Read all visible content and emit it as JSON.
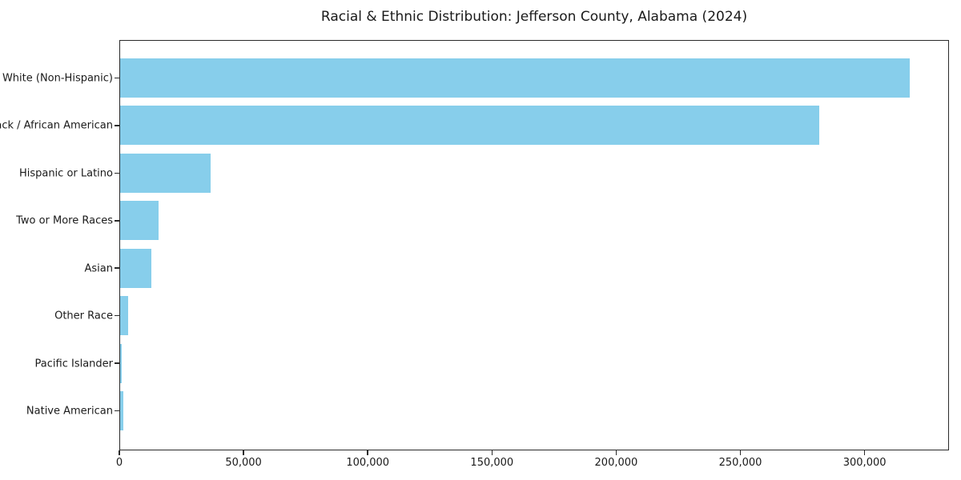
{
  "page": {
    "background_color": "#ffffff",
    "text_color": "#1a1a1a",
    "axis_color": "#2a2a2a"
  },
  "chart_data": {
    "type": "bar",
    "orientation": "horizontal",
    "title": "Racial & Ethnic Distribution: Jefferson County, Alabama (2024)",
    "categories": [
      "White (Non-Hispanic)",
      "Black / African American",
      "Hispanic or Latino",
      "Two or More Races",
      "Asian",
      "Other Race",
      "Pacific Islander",
      "Native American"
    ],
    "values": [
      317400,
      281300,
      36300,
      15400,
      12500,
      3200,
      800,
      1200
    ],
    "bar_color": "#87CEEB",
    "xlabel": "",
    "ylabel": "",
    "xlim": [
      0,
      333000
    ],
    "x_ticks": [
      {
        "value": 0,
        "label": "0"
      },
      {
        "value": 50000,
        "label": "50,000"
      },
      {
        "value": 100000,
        "label": "100,000"
      },
      {
        "value": 150000,
        "label": "150,000"
      },
      {
        "value": 200000,
        "label": "200,000"
      },
      {
        "value": 250000,
        "label": "250,000"
      },
      {
        "value": 300000,
        "label": "300,000"
      }
    ],
    "grid": false,
    "legend": "none"
  }
}
